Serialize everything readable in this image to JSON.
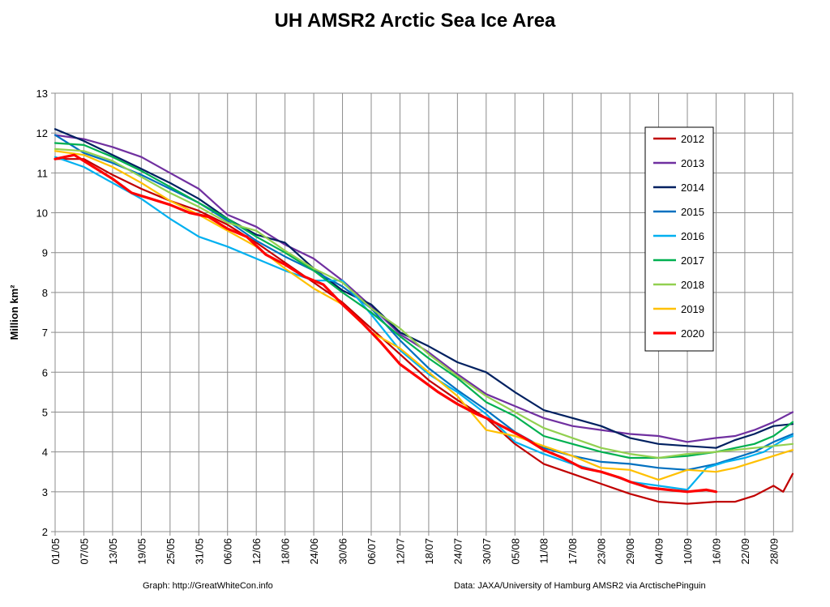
{
  "chart_data": {
    "type": "line",
    "title": "UH AMSR2 Arctic Sea Ice Area",
    "ylabel": "Million km²",
    "xlabel": "",
    "ylim": [
      2,
      13
    ],
    "yticks": [
      2,
      3,
      4,
      5,
      6,
      7,
      8,
      9,
      10,
      11,
      12,
      13
    ],
    "x_tick_labels": [
      "01/05",
      "07/05",
      "13/05",
      "19/05",
      "25/05",
      "31/05",
      "06/06",
      "12/06",
      "18/06",
      "24/06",
      "30/06",
      "06/07",
      "12/07",
      "18/07",
      "24/07",
      "30/07",
      "05/08",
      "11/08",
      "17/08",
      "23/08",
      "29/08",
      "04/09",
      "10/09",
      "16/09",
      "22/09",
      "28/09"
    ],
    "x_tick_step_days": 6,
    "x_range_days": [
      0,
      154
    ],
    "grid": true,
    "legend_position": "right",
    "series": [
      {
        "name": "2012",
        "color": "#c00000",
        "points": [
          [
            0,
            11.35
          ],
          [
            6,
            11.35
          ],
          [
            12,
            10.95
          ],
          [
            18,
            10.6
          ],
          [
            24,
            10.3
          ],
          [
            30,
            10.05
          ],
          [
            36,
            9.7
          ],
          [
            42,
            9.25
          ],
          [
            48,
            8.75
          ],
          [
            54,
            8.25
          ],
          [
            60,
            7.75
          ],
          [
            66,
            7.1
          ],
          [
            72,
            6.45
          ],
          [
            78,
            5.8
          ],
          [
            84,
            5.3
          ],
          [
            90,
            4.85
          ],
          [
            96,
            4.2
          ],
          [
            102,
            3.7
          ],
          [
            108,
            3.45
          ],
          [
            114,
            3.2
          ],
          [
            120,
            2.95
          ],
          [
            126,
            2.75
          ],
          [
            132,
            2.7
          ],
          [
            138,
            2.75
          ],
          [
            142,
            2.75
          ],
          [
            146,
            2.9
          ],
          [
            150,
            3.15
          ],
          [
            152,
            3.0
          ],
          [
            154,
            3.45
          ]
        ]
      },
      {
        "name": "2013",
        "color": "#7030a0",
        "points": [
          [
            0,
            11.95
          ],
          [
            6,
            11.85
          ],
          [
            12,
            11.65
          ],
          [
            18,
            11.4
          ],
          [
            24,
            11.0
          ],
          [
            30,
            10.6
          ],
          [
            36,
            9.95
          ],
          [
            42,
            9.65
          ],
          [
            48,
            9.2
          ],
          [
            54,
            8.85
          ],
          [
            60,
            8.3
          ],
          [
            66,
            7.65
          ],
          [
            72,
            6.95
          ],
          [
            78,
            6.5
          ],
          [
            84,
            5.95
          ],
          [
            90,
            5.45
          ],
          [
            96,
            5.15
          ],
          [
            102,
            4.85
          ],
          [
            108,
            4.65
          ],
          [
            114,
            4.55
          ],
          [
            120,
            4.45
          ],
          [
            126,
            4.4
          ],
          [
            132,
            4.25
          ],
          [
            138,
            4.35
          ],
          [
            142,
            4.4
          ],
          [
            146,
            4.55
          ],
          [
            150,
            4.75
          ],
          [
            154,
            5.0
          ]
        ]
      },
      {
        "name": "2014",
        "color": "#002060",
        "points": [
          [
            0,
            12.1
          ],
          [
            6,
            11.8
          ],
          [
            12,
            11.45
          ],
          [
            18,
            11.1
          ],
          [
            24,
            10.75
          ],
          [
            30,
            10.35
          ],
          [
            36,
            9.85
          ],
          [
            42,
            9.45
          ],
          [
            48,
            9.25
          ],
          [
            54,
            8.6
          ],
          [
            60,
            8.05
          ],
          [
            66,
            7.7
          ],
          [
            72,
            7.0
          ],
          [
            78,
            6.65
          ],
          [
            84,
            6.25
          ],
          [
            90,
            6.0
          ],
          [
            96,
            5.5
          ],
          [
            102,
            5.05
          ],
          [
            108,
            4.85
          ],
          [
            114,
            4.65
          ],
          [
            120,
            4.35
          ],
          [
            126,
            4.2
          ],
          [
            132,
            4.15
          ],
          [
            138,
            4.1
          ],
          [
            142,
            4.3
          ],
          [
            146,
            4.45
          ],
          [
            150,
            4.65
          ],
          [
            154,
            4.7
          ]
        ]
      },
      {
        "name": "2015",
        "color": "#0070c0",
        "points": [
          [
            0,
            11.95
          ],
          [
            6,
            11.5
          ],
          [
            12,
            11.25
          ],
          [
            18,
            10.95
          ],
          [
            24,
            10.6
          ],
          [
            30,
            10.25
          ],
          [
            36,
            9.8
          ],
          [
            42,
            9.3
          ],
          [
            48,
            8.9
          ],
          [
            54,
            8.55
          ],
          [
            60,
            8.15
          ],
          [
            66,
            7.6
          ],
          [
            72,
            6.8
          ],
          [
            78,
            6.1
          ],
          [
            84,
            5.55
          ],
          [
            90,
            5.05
          ],
          [
            96,
            4.5
          ],
          [
            102,
            4.1
          ],
          [
            108,
            3.9
          ],
          [
            114,
            3.75
          ],
          [
            120,
            3.7
          ],
          [
            126,
            3.6
          ],
          [
            132,
            3.55
          ],
          [
            138,
            3.7
          ],
          [
            142,
            3.85
          ],
          [
            146,
            4.0
          ],
          [
            150,
            4.25
          ],
          [
            154,
            4.45
          ]
        ]
      },
      {
        "name": "2016",
        "color": "#00b0f0",
        "points": [
          [
            0,
            11.4
          ],
          [
            6,
            11.15
          ],
          [
            12,
            10.75
          ],
          [
            18,
            10.35
          ],
          [
            24,
            9.85
          ],
          [
            30,
            9.4
          ],
          [
            36,
            9.15
          ],
          [
            42,
            8.85
          ],
          [
            48,
            8.55
          ],
          [
            54,
            8.3
          ],
          [
            60,
            8.3
          ],
          [
            66,
            7.45
          ],
          [
            72,
            6.55
          ],
          [
            78,
            5.95
          ],
          [
            84,
            5.5
          ],
          [
            90,
            4.95
          ],
          [
            96,
            4.25
          ],
          [
            102,
            3.95
          ],
          [
            108,
            3.7
          ],
          [
            114,
            3.5
          ],
          [
            120,
            3.25
          ],
          [
            126,
            3.15
          ],
          [
            132,
            3.05
          ],
          [
            136,
            3.6
          ],
          [
            140,
            3.75
          ],
          [
            144,
            3.85
          ],
          [
            148,
            4.0
          ],
          [
            152,
            4.3
          ],
          [
            154,
            4.4
          ]
        ]
      },
      {
        "name": "2017",
        "color": "#00b050",
        "points": [
          [
            0,
            11.75
          ],
          [
            6,
            11.7
          ],
          [
            12,
            11.4
          ],
          [
            18,
            11.05
          ],
          [
            24,
            10.65
          ],
          [
            30,
            10.25
          ],
          [
            36,
            9.85
          ],
          [
            42,
            9.4
          ],
          [
            48,
            9.0
          ],
          [
            54,
            8.55
          ],
          [
            60,
            8.0
          ],
          [
            66,
            7.5
          ],
          [
            72,
            6.9
          ],
          [
            78,
            6.35
          ],
          [
            84,
            5.85
          ],
          [
            90,
            5.25
          ],
          [
            96,
            4.9
          ],
          [
            102,
            4.4
          ],
          [
            108,
            4.2
          ],
          [
            114,
            4.0
          ],
          [
            120,
            3.85
          ],
          [
            126,
            3.85
          ],
          [
            132,
            3.9
          ],
          [
            138,
            4.0
          ],
          [
            142,
            4.1
          ],
          [
            146,
            4.2
          ],
          [
            150,
            4.4
          ],
          [
            154,
            4.75
          ]
        ]
      },
      {
        "name": "2018",
        "color": "#92d050",
        "points": [
          [
            0,
            11.6
          ],
          [
            6,
            11.55
          ],
          [
            12,
            11.3
          ],
          [
            18,
            10.9
          ],
          [
            24,
            10.5
          ],
          [
            30,
            10.15
          ],
          [
            36,
            9.75
          ],
          [
            42,
            9.55
          ],
          [
            48,
            9.05
          ],
          [
            54,
            8.6
          ],
          [
            60,
            8.25
          ],
          [
            66,
            7.6
          ],
          [
            72,
            7.1
          ],
          [
            78,
            6.45
          ],
          [
            84,
            5.9
          ],
          [
            90,
            5.4
          ],
          [
            96,
            5.0
          ],
          [
            102,
            4.6
          ],
          [
            108,
            4.35
          ],
          [
            114,
            4.1
          ],
          [
            120,
            3.95
          ],
          [
            126,
            3.85
          ],
          [
            132,
            3.95
          ],
          [
            138,
            4.0
          ],
          [
            142,
            4.05
          ],
          [
            146,
            4.1
          ],
          [
            150,
            4.15
          ],
          [
            154,
            4.2
          ]
        ]
      },
      {
        "name": "2019",
        "color": "#ffc000",
        "points": [
          [
            0,
            11.55
          ],
          [
            6,
            11.45
          ],
          [
            12,
            11.15
          ],
          [
            18,
            10.75
          ],
          [
            24,
            10.3
          ],
          [
            30,
            9.95
          ],
          [
            36,
            9.55
          ],
          [
            42,
            9.15
          ],
          [
            48,
            8.6
          ],
          [
            54,
            8.1
          ],
          [
            60,
            7.7
          ],
          [
            66,
            7.0
          ],
          [
            72,
            6.6
          ],
          [
            78,
            6.0
          ],
          [
            84,
            5.4
          ],
          [
            90,
            4.55
          ],
          [
            96,
            4.4
          ],
          [
            102,
            4.15
          ],
          [
            108,
            3.9
          ],
          [
            114,
            3.6
          ],
          [
            120,
            3.55
          ],
          [
            126,
            3.3
          ],
          [
            132,
            3.55
          ],
          [
            138,
            3.5
          ],
          [
            142,
            3.6
          ],
          [
            146,
            3.75
          ],
          [
            150,
            3.9
          ],
          [
            154,
            4.05
          ]
        ]
      },
      {
        "name": "2020",
        "color": "#ff0000",
        "bold": true,
        "points": [
          [
            0,
            11.35
          ],
          [
            4,
            11.45
          ],
          [
            8,
            11.15
          ],
          [
            12,
            10.85
          ],
          [
            16,
            10.5
          ],
          [
            20,
            10.35
          ],
          [
            24,
            10.2
          ],
          [
            28,
            10.0
          ],
          [
            32,
            9.9
          ],
          [
            36,
            9.6
          ],
          [
            40,
            9.4
          ],
          [
            44,
            8.95
          ],
          [
            48,
            8.7
          ],
          [
            52,
            8.4
          ],
          [
            56,
            8.2
          ],
          [
            60,
            7.7
          ],
          [
            64,
            7.25
          ],
          [
            68,
            6.75
          ],
          [
            72,
            6.2
          ],
          [
            76,
            5.85
          ],
          [
            80,
            5.5
          ],
          [
            84,
            5.2
          ],
          [
            88,
            4.95
          ],
          [
            90,
            4.85
          ],
          [
            94,
            4.6
          ],
          [
            98,
            4.35
          ],
          [
            102,
            4.05
          ],
          [
            106,
            3.85
          ],
          [
            110,
            3.6
          ],
          [
            114,
            3.5
          ],
          [
            118,
            3.35
          ],
          [
            120,
            3.25
          ],
          [
            124,
            3.1
          ],
          [
            128,
            3.05
          ],
          [
            132,
            3.0
          ],
          [
            136,
            3.05
          ],
          [
            138,
            3.0
          ]
        ]
      }
    ]
  },
  "footer": {
    "left": "Graph: http://GreatWhiteCon.info",
    "right": "Data: JAXA/University of Hamburg AMSR2 via  ArctischePinguin"
  }
}
